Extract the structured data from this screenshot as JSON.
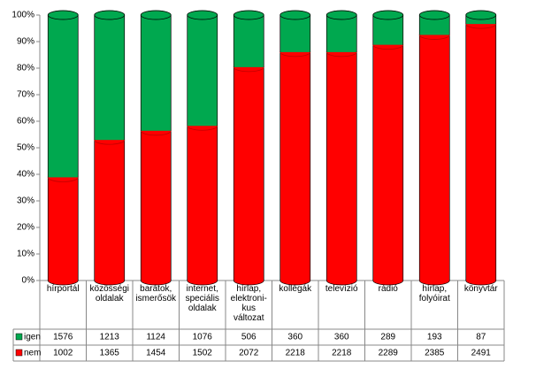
{
  "chart_data": {
    "type": "stacked-cylinder-100",
    "categories": [
      "hírportál",
      "közösségi oldalak",
      "barátok, ismerősök",
      "internet, speciális oldalak",
      "hírlap, elektroni-kus változat",
      "kollégák",
      "televízió",
      "rádió",
      "hírlap, folyóirat",
      "könyvtár"
    ],
    "series": [
      {
        "name": "igen",
        "color": "#00a84f",
        "values": [
          1576,
          1213,
          1124,
          1076,
          506,
          360,
          360,
          289,
          193,
          87
        ]
      },
      {
        "name": "nem",
        "color": "#ff0000",
        "values": [
          1002,
          1365,
          1454,
          1502,
          2072,
          2218,
          2218,
          2289,
          2385,
          2491
        ]
      }
    ],
    "ylim": [
      0,
      100
    ],
    "yticks": [
      {
        "value": 0,
        "label": "0%"
      },
      {
        "value": 10,
        "label": "10%"
      },
      {
        "value": 20,
        "label": "20%"
      },
      {
        "value": 30,
        "label": "30%"
      },
      {
        "value": 40,
        "label": "40%"
      },
      {
        "value": 50,
        "label": "50%"
      },
      {
        "value": 60,
        "label": "60%"
      },
      {
        "value": 70,
        "label": "70%"
      },
      {
        "value": 80,
        "label": "80%"
      },
      {
        "value": 90,
        "label": "90%"
      },
      {
        "value": 100,
        "label": "100%"
      }
    ]
  }
}
